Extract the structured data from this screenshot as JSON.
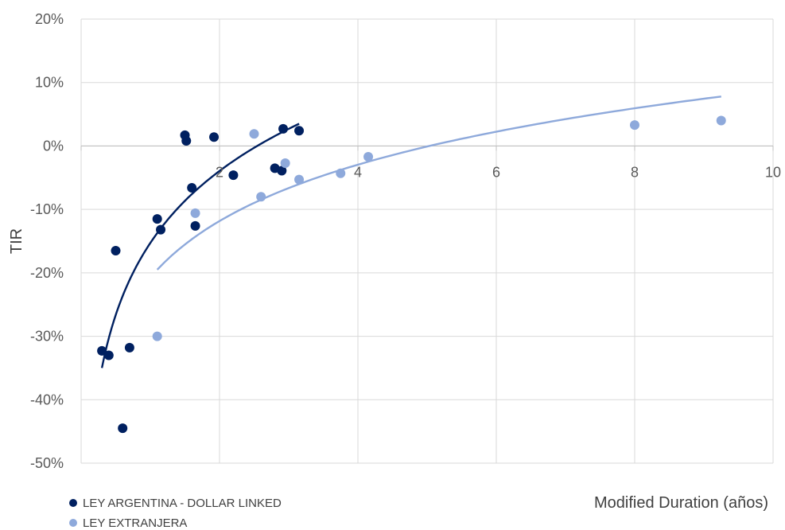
{
  "chart_data": {
    "type": "scatter",
    "xlabel": "Modified Duration (años)",
    "ylabel": "TIR",
    "xlim": [
      0,
      10
    ],
    "ylim": [
      -50,
      20
    ],
    "x_ticks": [
      "2",
      "4",
      "6",
      "8",
      "10"
    ],
    "y_ticks": [
      "20%",
      "10%",
      "0%",
      "-10%",
      "-20%",
      "-30%",
      "-40%",
      "-50%"
    ],
    "grid": true,
    "legend_position": "bottom-left",
    "series": [
      {
        "name": "LEY ARGENTINA - DOLLAR LINKED",
        "color": "#002060",
        "points": [
          [
            0.3,
            -32.3
          ],
          [
            0.4,
            -33.0
          ],
          [
            0.5,
            -16.5
          ],
          [
            0.6,
            -44.5
          ],
          [
            0.7,
            -31.8
          ],
          [
            1.1,
            -11.5
          ],
          [
            1.15,
            -13.2
          ],
          [
            1.5,
            1.7
          ],
          [
            1.52,
            0.8
          ],
          [
            1.6,
            -6.6
          ],
          [
            1.65,
            -12.6
          ],
          [
            1.92,
            1.4
          ],
          [
            2.2,
            -4.6
          ],
          [
            2.8,
            -3.5
          ],
          [
            2.9,
            -3.9
          ],
          [
            2.92,
            2.7
          ],
          [
            3.15,
            2.4
          ]
        ],
        "trendline": {
          "type": "logarithmic",
          "x_range": [
            0.3,
            3.15
          ],
          "y_range": [
            -35.0,
            3.5
          ]
        }
      },
      {
        "name": "LEY EXTRANJERA",
        "color": "#8EA9DB",
        "points": [
          [
            1.1,
            -30.0
          ],
          [
            1.65,
            -10.6
          ],
          [
            2.5,
            1.9
          ],
          [
            2.6,
            -8.0
          ],
          [
            2.95,
            -2.7
          ],
          [
            3.15,
            -5.3
          ],
          [
            3.75,
            -4.3
          ],
          [
            4.15,
            -1.7
          ],
          [
            8.0,
            3.3
          ],
          [
            9.25,
            4.0
          ]
        ],
        "trendline": {
          "type": "logarithmic",
          "x_range": [
            1.1,
            9.25
          ],
          "y_range": [
            -19.5,
            7.8
          ]
        }
      }
    ]
  }
}
